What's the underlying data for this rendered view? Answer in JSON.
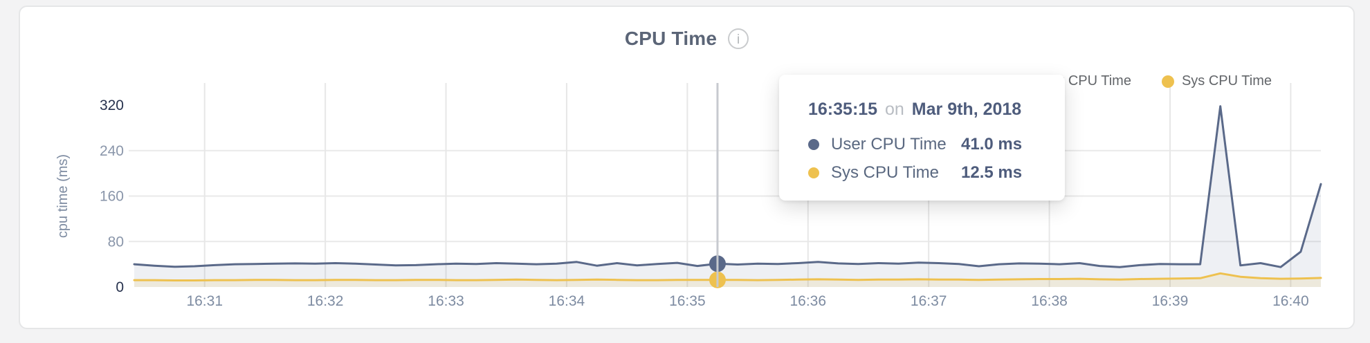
{
  "header": {
    "title": "CPU Time"
  },
  "legend": {
    "items": [
      {
        "label": "User CPU Time",
        "color": "#5a6989"
      },
      {
        "label": "Sys CPU Time",
        "color": "#eec14f"
      }
    ]
  },
  "tooltip": {
    "time": "16:35:15",
    "connector": "on",
    "date": "Mar 9th, 2018",
    "rows": [
      {
        "label": "User CPU Time",
        "value": "41.0 ms",
        "color": "#5a6989"
      },
      {
        "label": "Sys CPU Time",
        "value": "12.5 ms",
        "color": "#eec14f"
      }
    ]
  },
  "chart_data": {
    "type": "area",
    "title": "CPU Time",
    "xlabel": "",
    "ylabel": "cpu time (ms)",
    "ylim": [
      0,
      320
    ],
    "yticks": [
      0,
      80,
      160,
      240,
      320
    ],
    "xticks": [
      "16:31",
      "16:32",
      "16:33",
      "16:34",
      "16:35",
      "16:36",
      "16:37",
      "16:38",
      "16:39",
      "16:40"
    ],
    "x_start": "16:30:25",
    "x_end": "16:40:15",
    "sample_interval_s": 10,
    "grid": true,
    "legend_position": "top-right",
    "series": [
      {
        "name": "User CPU Time",
        "color": "#5a6989",
        "fill": "rgba(92,108,143,0.10)",
        "unit": "ms",
        "values": [
          40,
          37.5,
          35.5,
          36.5,
          38.5,
          40,
          40.5,
          41,
          41.5,
          41,
          42,
          41,
          39.5,
          38,
          38.5,
          40,
          41,
          40.5,
          42,
          41,
          40,
          41,
          44,
          37.5,
          42,
          38,
          40.5,
          42.5,
          37,
          41,
          39.5,
          41,
          40.5,
          42,
          44,
          41.5,
          40.5,
          42,
          41,
          43,
          42,
          40.5,
          36.5,
          40,
          41.5,
          41,
          40,
          42,
          37,
          35,
          38.5,
          40.5,
          40,
          40,
          318,
          38,
          42,
          35,
          62,
          181
        ]
      },
      {
        "name": "Sys CPU Time",
        "color": "#eec14f",
        "fill": "rgba(236,190,76,0.14)",
        "unit": "ms",
        "values": [
          12,
          12,
          11.5,
          11.5,
          12,
          12,
          12.5,
          12.5,
          12,
          12,
          12.5,
          12.5,
          12,
          12,
          12.5,
          12.5,
          12,
          12,
          12.5,
          13,
          12.5,
          12,
          12.5,
          13,
          12.5,
          12,
          12,
          12.5,
          12.5,
          12.5,
          12.5,
          12,
          12.5,
          13,
          13.5,
          13,
          12.5,
          13,
          13,
          13.5,
          13,
          13,
          12.5,
          13,
          13.5,
          14,
          14,
          14.5,
          13.5,
          13,
          14,
          14.5,
          15,
          15.5,
          24,
          18,
          15.5,
          14.5,
          15,
          16
        ]
      }
    ],
    "hover": {
      "time": "16:35:15",
      "user_ms": 41.0,
      "sys_ms": 12.5
    }
  }
}
